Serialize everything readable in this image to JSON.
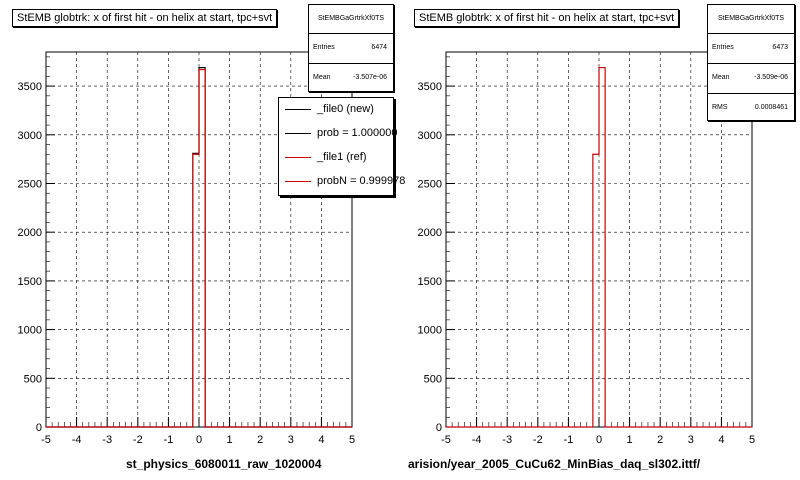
{
  "panels": [
    {
      "title": "StEMB globtrk: x of first hit - on helix at start, tpc+svt",
      "stats": {
        "name": "StEMBGaGrtrkXf0TS",
        "rows": [
          {
            "key": "Entries",
            "value": "6474"
          },
          {
            "key": "Mean",
            "value": "-3.507e-06"
          }
        ]
      },
      "legend": [
        {
          "label": "_file0 (new)",
          "color": "#000000"
        },
        {
          "label": "prob = 1.000000",
          "color": "#000000"
        },
        {
          "label": "_file1 (ref)",
          "color": "#cc0000"
        },
        {
          "label": "probN = 0.999978",
          "color": "#cc0000"
        }
      ],
      "xlabel": "st_physics_6080011_raw_1020004"
    },
    {
      "title": "StEMB globtrk: x of first hit - on helix at start, tpc+svt",
      "stats": {
        "name": "StEMBGaGrtrkXf0TS",
        "rows": [
          {
            "key": "Entries",
            "value": "6473"
          },
          {
            "key": "Mean",
            "value": "-3.509e-06"
          },
          {
            "key": "RMS",
            "value": "0.0008461"
          }
        ]
      },
      "legend": [],
      "xlabel": "arision/year_2005_CuCu62_MinBias_daq_sl302.ittf/"
    }
  ],
  "footer": "",
  "chart_data": [
    {
      "type": "bar",
      "title": "StEMB globtrk: x of first hit - on helix at start, tpc+svt",
      "xlabel": "st_physics_6080011_raw_1020004",
      "ylabel": "",
      "xlim": [
        -5,
        5
      ],
      "ylim": [
        0,
        3850
      ],
      "xticks": [
        -5,
        -4,
        -3,
        -2,
        -1,
        0,
        1,
        2,
        3,
        4,
        5
      ],
      "yticks": [
        0,
        500,
        1000,
        1500,
        2000,
        2500,
        3000,
        3500
      ],
      "grid": true,
      "legend_position": "top-right",
      "bin_edges": [
        -0.2,
        0,
        0.2
      ],
      "series": [
        {
          "name": "_file0 (new)",
          "color": "#000000",
          "values": [
            2810,
            3690
          ]
        },
        {
          "name": "_file1 (ref)",
          "color": "#cc0000",
          "values": [
            2800,
            3670
          ]
        }
      ]
    },
    {
      "type": "bar",
      "title": "StEMB globtrk: x of first hit - on helix at start, tpc+svt",
      "xlabel": "arision/year_2005_CuCu62_MinBias_daq_sl302.ittf/",
      "ylabel": "",
      "xlim": [
        -5,
        5
      ],
      "ylim": [
        0,
        3850
      ],
      "xticks": [
        -5,
        -4,
        -3,
        -2,
        -1,
        0,
        1,
        2,
        3,
        4,
        5
      ],
      "yticks": [
        0,
        500,
        1000,
        1500,
        2000,
        2500,
        3000,
        3500
      ],
      "grid": true,
      "bin_edges": [
        -0.2,
        0,
        0.2
      ],
      "series": [
        {
          "color": "#cc0000",
          "values": [
            2800,
            3690
          ]
        }
      ]
    }
  ]
}
